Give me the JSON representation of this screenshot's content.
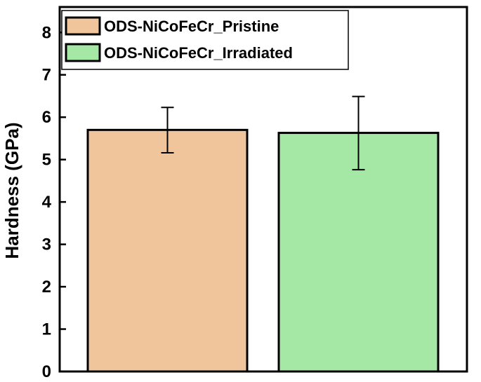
{
  "chart_data": {
    "type": "bar",
    "categories": [
      "ODS-NiCoFeCr_Pristine",
      "ODS-NiCoFeCr_Irradiated"
    ],
    "series": [
      {
        "values": [
          5.7,
          5.63
        ],
        "errors": [
          [
            5.16,
            6.23
          ],
          [
            4.76,
            6.49
          ]
        ]
      }
    ],
    "colors": [
      "#f0c59c",
      "#a5e8a5"
    ],
    "title": "",
    "xlabel": "",
    "ylabel": "Hardness (GPa)",
    "ylim": [
      0,
      8.6
    ],
    "yticks": [
      "0",
      "1",
      "2",
      "3",
      "4",
      "5",
      "6",
      "7",
      "8"
    ],
    "grid": false,
    "legend": {
      "placement": "top-left",
      "entries": [
        "ODS-NiCoFeCr_Pristine",
        "ODS-NiCoFeCr_Irradiated"
      ]
    }
  }
}
